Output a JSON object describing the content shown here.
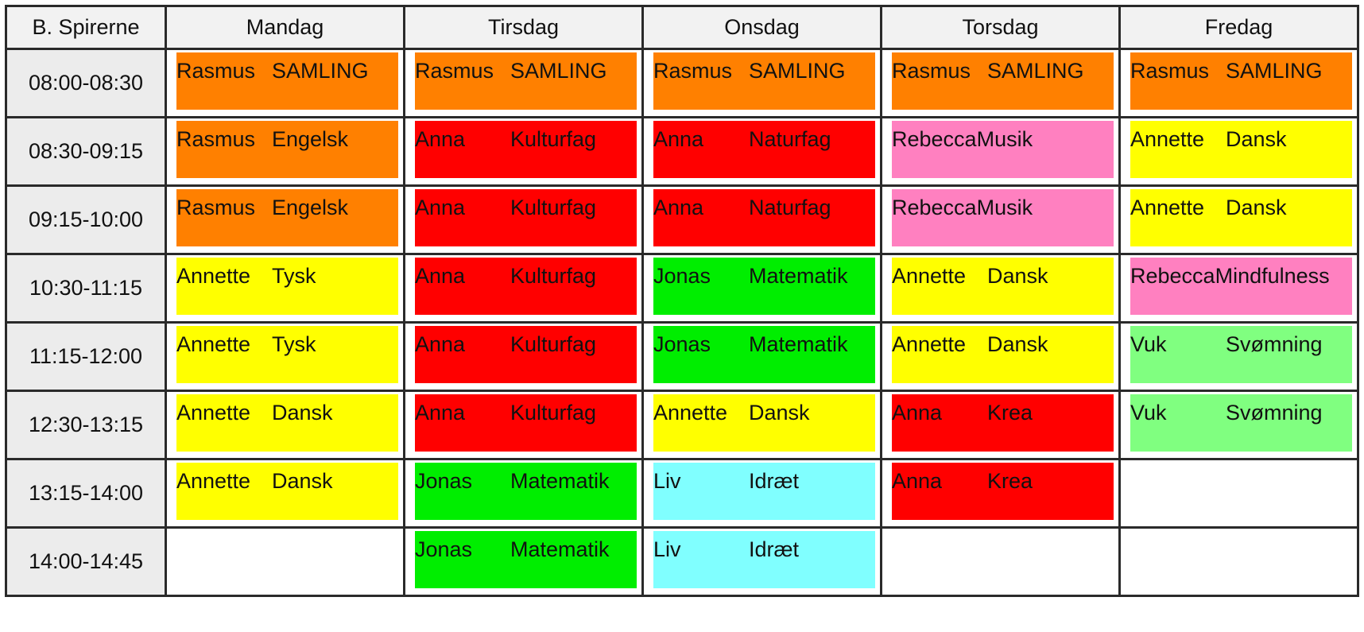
{
  "header": {
    "corner": "B. Spirerne",
    "days": [
      "Mandag",
      "Tirsdag",
      "Onsdag",
      "Torsdag",
      "Fredag"
    ]
  },
  "colors": {
    "orange": "#ff8000",
    "red": "#ff0000",
    "yellow": "#ffff00",
    "pink": "#ff80c0",
    "green": "#00ee00",
    "lightgreen": "#80ff80",
    "cyan": "#80ffff"
  },
  "rows": [
    {
      "time": "08:00-08:30",
      "cells": [
        {
          "teacher": "Rasmus",
          "subject": "SAMLING",
          "color": "#ff8000"
        },
        {
          "teacher": "Rasmus",
          "subject": "SAMLING",
          "color": "#ff8000"
        },
        {
          "teacher": "Rasmus",
          "subject": "SAMLING",
          "color": "#ff8000"
        },
        {
          "teacher": "Rasmus",
          "subject": "SAMLING",
          "color": "#ff8000"
        },
        {
          "teacher": "Rasmus",
          "subject": "SAMLING",
          "color": "#ff8000"
        }
      ]
    },
    {
      "time": "08:30-09:15",
      "cells": [
        {
          "teacher": "Rasmus",
          "subject": "Engelsk",
          "color": "#ff8000"
        },
        {
          "teacher": "Anna",
          "subject": "Kulturfag",
          "color": "#ff0000"
        },
        {
          "teacher": "Anna",
          "subject": "Naturfag",
          "color": "#ff0000"
        },
        {
          "teacher": "Rebecca",
          "subject": "Musik",
          "color": "#ff80c0",
          "tight": true
        },
        {
          "teacher": "Annette",
          "subject": "Dansk",
          "color": "#ffff00"
        }
      ]
    },
    {
      "time": "09:15-10:00",
      "cells": [
        {
          "teacher": "Rasmus",
          "subject": "Engelsk",
          "color": "#ff8000"
        },
        {
          "teacher": "Anna",
          "subject": "Kulturfag",
          "color": "#ff0000"
        },
        {
          "teacher": "Anna",
          "subject": "Naturfag",
          "color": "#ff0000"
        },
        {
          "teacher": "Rebecca",
          "subject": "Musik",
          "color": "#ff80c0",
          "tight": true
        },
        {
          "teacher": "Annette",
          "subject": "Dansk",
          "color": "#ffff00"
        }
      ]
    },
    {
      "time": "10:30-11:15",
      "cells": [
        {
          "teacher": "Annette",
          "subject": "Tysk",
          "color": "#ffff00"
        },
        {
          "teacher": "Anna",
          "subject": "Kulturfag",
          "color": "#ff0000"
        },
        {
          "teacher": "Jonas",
          "subject": "Matematik",
          "color": "#00ee00"
        },
        {
          "teacher": "Annette",
          "subject": "Dansk",
          "color": "#ffff00"
        },
        {
          "teacher": "Rebecca",
          "subject": "Mindfulness",
          "color": "#ff80c0",
          "tight": true
        }
      ]
    },
    {
      "time": "11:15-12:00",
      "cells": [
        {
          "teacher": "Annette",
          "subject": "Tysk",
          "color": "#ffff00"
        },
        {
          "teacher": "Anna",
          "subject": "Kulturfag",
          "color": "#ff0000"
        },
        {
          "teacher": "Jonas",
          "subject": "Matematik",
          "color": "#00ee00"
        },
        {
          "teacher": "Annette",
          "subject": "Dansk",
          "color": "#ffff00"
        },
        {
          "teacher": "Vuk",
          "subject": "Svømning",
          "color": "#80ff80"
        }
      ]
    },
    {
      "time": "12:30-13:15",
      "cells": [
        {
          "teacher": "Annette",
          "subject": "Dansk",
          "color": "#ffff00"
        },
        {
          "teacher": "Anna",
          "subject": "Kulturfag",
          "color": "#ff0000"
        },
        {
          "teacher": "Annette",
          "subject": "Dansk",
          "color": "#ffff00"
        },
        {
          "teacher": "Anna",
          "subject": "Krea",
          "color": "#ff0000"
        },
        {
          "teacher": "Vuk",
          "subject": "Svømning",
          "color": "#80ff80"
        }
      ]
    },
    {
      "time": "13:15-14:00",
      "cells": [
        {
          "teacher": "Annette",
          "subject": "Dansk",
          "color": "#ffff00"
        },
        {
          "teacher": "Jonas",
          "subject": "Matematik",
          "color": "#00ee00"
        },
        {
          "teacher": "Liv",
          "subject": "Idræt",
          "color": "#80ffff"
        },
        {
          "teacher": "Anna",
          "subject": "Krea",
          "color": "#ff0000"
        },
        null
      ]
    },
    {
      "time": "14:00-14:45",
      "cells": [
        null,
        {
          "teacher": "Jonas",
          "subject": "Matematik",
          "color": "#00ee00"
        },
        {
          "teacher": "Liv",
          "subject": "Idræt",
          "color": "#80ffff"
        },
        null,
        null
      ]
    }
  ]
}
